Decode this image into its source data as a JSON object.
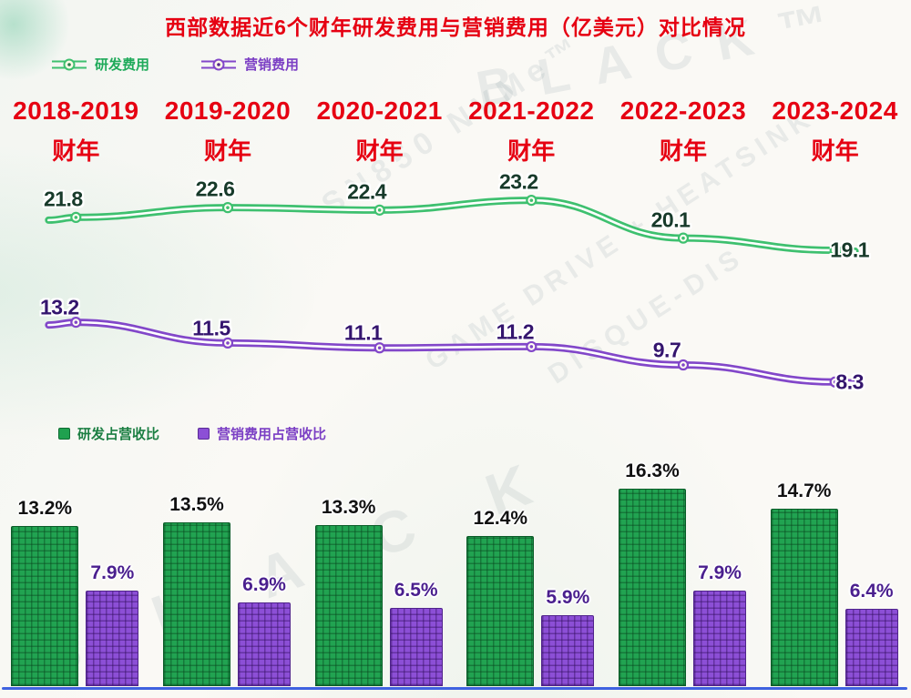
{
  "title": "西部数据近6个财年研发费用与营销费用（亿美元）对比情况",
  "fiscal_years": {
    "years": [
      "2018-2019",
      "2019-2020",
      "2020-2021",
      "2021-2022",
      "2022-2023",
      "2023-2024"
    ],
    "suffix": "财年"
  },
  "colors": {
    "title_red": "#e60012",
    "rd_green": "#3ec06f",
    "marketing_purple": "#8247c9",
    "bar_green": "#21a351",
    "bar_purple": "#8c4fd6",
    "axis_blue": "#3f62e0"
  },
  "chart_data": [
    {
      "type": "line",
      "title": "研发费用与营销费用（亿美元）",
      "categories": [
        "2018-2019财年",
        "2019-2020财年",
        "2020-2021财年",
        "2021-2022财年",
        "2022-2023财年",
        "2023-2024财年"
      ],
      "series": [
        {
          "name": "研发费用",
          "color": "#3ec06f",
          "values": [
            21.8,
            22.6,
            22.4,
            23.2,
            20.1,
            19.1
          ]
        },
        {
          "name": "营销费用",
          "color": "#8247c9",
          "values": [
            13.2,
            11.5,
            11.1,
            11.2,
            9.7,
            8.3
          ]
        }
      ],
      "unit": "亿美元",
      "legend_position": "top-left",
      "grid": false
    },
    {
      "type": "bar",
      "title": "研发及营销费用占营收比（%）",
      "categories": [
        "2018-2019财年",
        "2019-2020财年",
        "2020-2021财年",
        "2021-2022财年",
        "2022-2023财年",
        "2023-2024财年"
      ],
      "series": [
        {
          "name": "研发占营收比",
          "color": "#21a351",
          "unit": "%",
          "values": [
            13.2,
            13.5,
            13.3,
            12.4,
            16.3,
            14.7
          ]
        },
        {
          "name": "营销费用占营收比",
          "color": "#8c4fd6",
          "unit": "%",
          "values": [
            7.9,
            6.9,
            6.5,
            5.9,
            7.9,
            6.4
          ]
        }
      ],
      "legend_position": "top-left",
      "grid": false
    }
  ],
  "watermarks": [
    "BLACK™",
    "SN850 NVMe™",
    "GAME DRIVE + HEATSINK",
    "DISQUE-DIS",
    "B L A C K"
  ]
}
